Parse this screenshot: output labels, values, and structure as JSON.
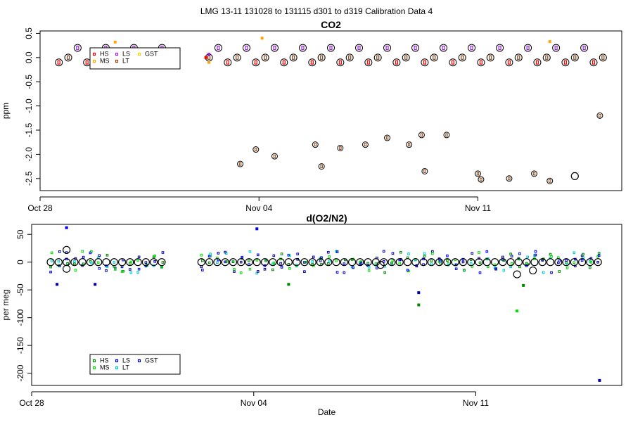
{
  "figure_title": "LMG   13-11    131028 to 131115    d301 to d319   Calibration Data 4",
  "colors": {
    "HS": "#ff0000",
    "MS": "#ffa500",
    "LS": "#a020f0",
    "LT": "#8b4513",
    "GST": "#ffcc00",
    "o2_HS": "#008800",
    "o2_MS": "#00dd00",
    "o2_LS": "#0000ff",
    "o2_LT": "#00cccc",
    "o2_GST": "#0000aa",
    "mean_circle": "#000000"
  },
  "chart_data": [
    {
      "type": "scatter",
      "title": "CO2",
      "xlabel": "",
      "ylabel": "ppm",
      "xlim": [
        301,
        319.6
      ],
      "ylim": [
        -2.75,
        0.55
      ],
      "x_ticks": [
        {
          "value": 301,
          "label": "Oct 28"
        },
        {
          "value": 308,
          "label": "Nov 04"
        },
        {
          "value": 315,
          "label": "Nov 11"
        }
      ],
      "y_ticks": [
        {
          "value": 0.5,
          "label": "0.5"
        },
        {
          "value": 0.0,
          "label": "0.0"
        },
        {
          "value": -0.5,
          "label": "-0.5"
        },
        {
          "value": -1.0,
          "label": "-1.0"
        },
        {
          "value": -1.5,
          "label": "-1.5"
        },
        {
          "value": -2.0,
          "label": "-2.0"
        },
        {
          "value": -2.5,
          "label": "-2.5"
        }
      ],
      "legend": {
        "placement": "top-left",
        "entries": [
          {
            "label": "HS",
            "key": "HS"
          },
          {
            "label": "MS",
            "key": "MS"
          },
          {
            "label": "LS",
            "key": "LS"
          },
          {
            "label": "LT",
            "key": "LT"
          },
          {
            "label": "GST",
            "key": "GST"
          }
        ]
      },
      "patterns": {
        "cycle_start": 301.6,
        "cycle_step": 0.3,
        "cycle_count": 60,
        "values_by_phase": [
          -0.1,
          0.0,
          0.2
        ],
        "phase_keys": [
          "HS",
          "LT",
          "LS"
        ],
        "gap": [
          305.0,
          306.2
        ]
      },
      "points": [
        {
          "name": "HS",
          "x": 306.3,
          "y": 0.0
        },
        {
          "name": "MS",
          "x": 306.4,
          "y": -0.1
        },
        {
          "name": "LS",
          "x": 306.4,
          "y": 0.07
        },
        {
          "name": "MS",
          "x": 303.4,
          "y": 0.32
        },
        {
          "name": "MS",
          "x": 308.1,
          "y": 0.4
        },
        {
          "name": "MS",
          "x": 317.3,
          "y": 0.33
        },
        {
          "name": "LT",
          "x": 307.4,
          "y": -2.2
        },
        {
          "name": "LT",
          "x": 307.9,
          "y": -1.9
        },
        {
          "name": "LT",
          "x": 308.5,
          "y": -2.04
        },
        {
          "name": "LT",
          "x": 309.8,
          "y": -1.8
        },
        {
          "name": "LT",
          "x": 310.0,
          "y": -2.25
        },
        {
          "name": "LT",
          "x": 310.6,
          "y": -1.87
        },
        {
          "name": "LT",
          "x": 311.4,
          "y": -1.8
        },
        {
          "name": "LT",
          "x": 312.1,
          "y": -1.66
        },
        {
          "name": "LT",
          "x": 312.8,
          "y": -1.8
        },
        {
          "name": "LT",
          "x": 313.2,
          "y": -1.6
        },
        {
          "name": "LT",
          "x": 313.3,
          "y": -2.35
        },
        {
          "name": "LT",
          "x": 314.0,
          "y": -1.6
        },
        {
          "name": "LT",
          "x": 315.0,
          "y": -2.4
        },
        {
          "name": "LT",
          "x": 315.1,
          "y": -2.52
        },
        {
          "name": "LT",
          "x": 316.0,
          "y": -2.5
        },
        {
          "name": "LT",
          "x": 316.8,
          "y": -2.4
        },
        {
          "name": "LT",
          "x": 317.3,
          "y": -2.55
        },
        {
          "name": "LT",
          "x": 318.9,
          "y": -1.2
        },
        {
          "name": "Mean",
          "x": 318.1,
          "y": -2.45
        }
      ]
    },
    {
      "type": "scatter",
      "title": "d(O2/N2)",
      "xlabel": "Date",
      "ylabel": "per meg",
      "xlim": [
        301,
        319.6
      ],
      "ylim": [
        -222,
        68
      ],
      "x_ticks": [
        {
          "value": 301,
          "label": "Oct 28"
        },
        {
          "value": 308,
          "label": "Nov 04"
        },
        {
          "value": 315,
          "label": "Nov 11"
        }
      ],
      "y_ticks": [
        {
          "value": 50,
          "label": "50"
        },
        {
          "value": 0,
          "label": "0"
        },
        {
          "value": -50,
          "label": "-50"
        },
        {
          "value": -100,
          "label": "-100"
        },
        {
          "value": -150,
          "label": "-150"
        },
        {
          "value": -200,
          "label": "-200"
        }
      ],
      "legend": {
        "placement": "bottom-left",
        "entries": [
          {
            "label": "HS",
            "key": "o2_HS"
          },
          {
            "label": "MS",
            "key": "o2_MS"
          },
          {
            "label": "LS",
            "key": "o2_LS"
          },
          {
            "label": "LT",
            "key": "o2_LT"
          },
          {
            "label": "GST",
            "key": "o2_GST"
          }
        ]
      },
      "patterns": {
        "cycle_start": 301.6,
        "cycle_step": 0.25,
        "cycle_count": 72,
        "spread": 25,
        "gap": [
          305.1,
          306.2
        ]
      },
      "points": [
        {
          "name": "o2_LS",
          "x": 302.1,
          "y": 62
        },
        {
          "name": "o2_LS",
          "x": 308.1,
          "y": 60
        },
        {
          "name": "o2_HS",
          "x": 309.1,
          "y": -40
        },
        {
          "name": "o2_GST",
          "x": 301.8,
          "y": -40
        },
        {
          "name": "o2_GST",
          "x": 303.0,
          "y": -40
        },
        {
          "name": "o2_HS",
          "x": 313.2,
          "y": -77
        },
        {
          "name": "o2_GST",
          "x": 313.2,
          "y": -55
        },
        {
          "name": "o2_MS",
          "x": 316.3,
          "y": -88
        },
        {
          "name": "o2_HS",
          "x": 316.5,
          "y": -42
        },
        {
          "name": "o2_GST",
          "x": 318.9,
          "y": -213
        },
        {
          "name": "Mean",
          "x": 302.1,
          "y": 22
        },
        {
          "name": "Mean",
          "x": 302.1,
          "y": -12
        },
        {
          "name": "Mean",
          "x": 316.3,
          "y": -22
        },
        {
          "name": "Mean",
          "x": 312.0,
          "y": -5
        },
        {
          "name": "Mean",
          "x": 316.8,
          "y": -15
        }
      ]
    }
  ]
}
